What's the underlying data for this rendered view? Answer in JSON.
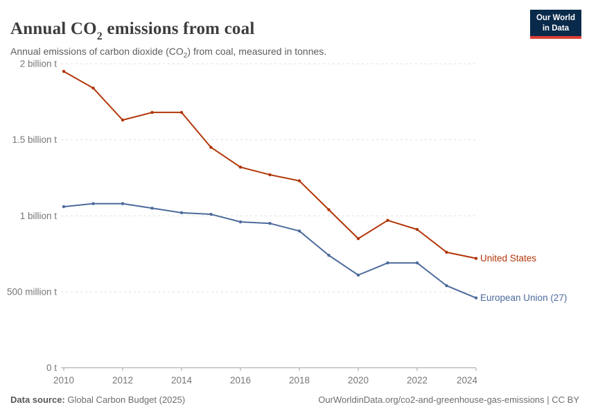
{
  "header": {
    "title": "Annual CO₂ emissions from coal",
    "title_parts": {
      "pre": "Annual CO",
      "sub": "2",
      "post": " emissions from coal"
    },
    "subtitle": "Annual emissions of carbon dioxide (CO₂) from coal, measured in tonnes.",
    "subtitle_parts": {
      "pre": "Annual emissions of carbon dioxide (CO",
      "sub": "2",
      "post": ") from coal, measured in tonnes."
    },
    "logo": {
      "line1": "Our World",
      "line2": "in Data",
      "bg_color": "#0a2a4b",
      "stripe_color": "#dc3f34"
    }
  },
  "chart_data": {
    "type": "line",
    "title": "Annual CO₂ emissions from coal",
    "unit": "billion tonnes of CO₂",
    "x": [
      2010,
      2011,
      2012,
      2013,
      2014,
      2015,
      2016,
      2017,
      2018,
      2019,
      2020,
      2021,
      2022,
      2023,
      2024
    ],
    "series": [
      {
        "name": "United States",
        "color": "#b13507",
        "values": [
          1.95,
          1.84,
          1.63,
          1.68,
          1.68,
          1.45,
          1.32,
          1.27,
          1.23,
          1.04,
          0.85,
          0.97,
          0.91,
          0.76,
          0.72
        ]
      },
      {
        "name": "European Union (27)",
        "color": "#4c6a9c",
        "values": [
          1.06,
          1.08,
          1.08,
          1.05,
          1.02,
          1.01,
          0.96,
          0.95,
          0.9,
          0.74,
          0.61,
          0.69,
          0.69,
          0.54,
          0.46
        ]
      }
    ],
    "ylim": [
      0,
      2
    ],
    "yticks": [
      {
        "value": 0,
        "label": "0 t"
      },
      {
        "value": 0.5,
        "label": "500 million t"
      },
      {
        "value": 1,
        "label": "1 billion t"
      },
      {
        "value": 1.5,
        "label": "1.5 billion t"
      },
      {
        "value": 2,
        "label": "2 billion t"
      }
    ],
    "xtick_years": [
      2010,
      2012,
      2014,
      2016,
      2018,
      2020,
      2022,
      2024
    ],
    "grid": "horizontal-dashed",
    "legend_position": "labels-at-line-ends"
  },
  "footer": {
    "source_label": "Data source:",
    "source_value": " Global Carbon Budget (2025)",
    "right_text": "OurWorldinData.org/co2-and-greenhouse-gas-emissions | CC BY"
  },
  "colors": {
    "united_states": "#b13507",
    "european_union": "#4c6a9c",
    "grid": "#dedede",
    "axis": "#a3a3a3",
    "tick_label": "#767676"
  }
}
